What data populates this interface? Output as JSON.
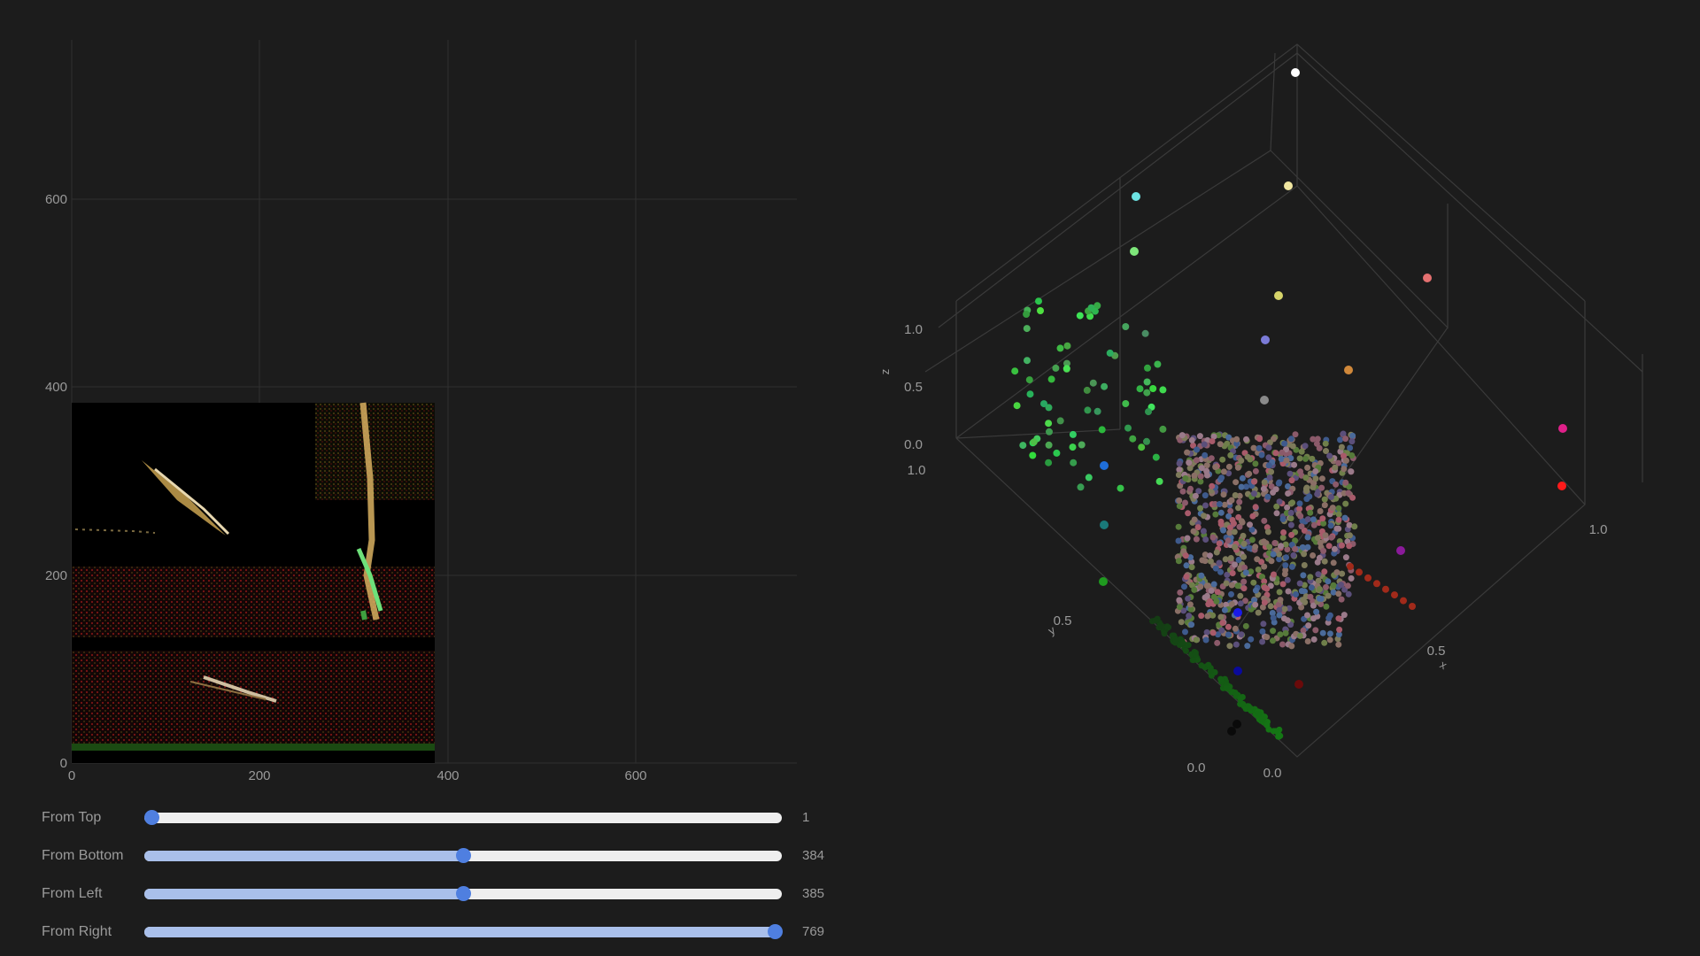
{
  "image_plot": {
    "x_ticks": [
      "0",
      "200",
      "400",
      "600"
    ],
    "y_ticks": [
      "0",
      "200",
      "400",
      "600"
    ],
    "x_range": [
      0,
      770
    ],
    "y_range": [
      0,
      770
    ],
    "image_extent": {
      "x": [
        0,
        385
      ],
      "y": [
        0,
        383
      ]
    }
  },
  "scatter3d": {
    "axis_titles": {
      "x": "x",
      "y": "y",
      "z": "z"
    },
    "x_ticks": [
      "0.0",
      "0.5",
      "1.0"
    ],
    "y_ticks": [
      "0.0",
      "0.5",
      "1.0"
    ],
    "z_ticks": [
      "0.0",
      "0.5",
      "1.0"
    ]
  },
  "sliders": [
    {
      "label": "From Top",
      "value": "1",
      "fraction": 0.0
    },
    {
      "label": "From Bottom",
      "value": "384",
      "fraction": 0.5
    },
    {
      "label": "From Left",
      "value": "385",
      "fraction": 0.5
    },
    {
      "label": "From Right",
      "value": "769",
      "fraction": 1.0
    }
  ],
  "colors": {
    "background": "#1c1c1c",
    "slider_accent": "#4f7fe0",
    "slider_fill": "#a9bfea",
    "slider_track": "#eeeeee"
  }
}
